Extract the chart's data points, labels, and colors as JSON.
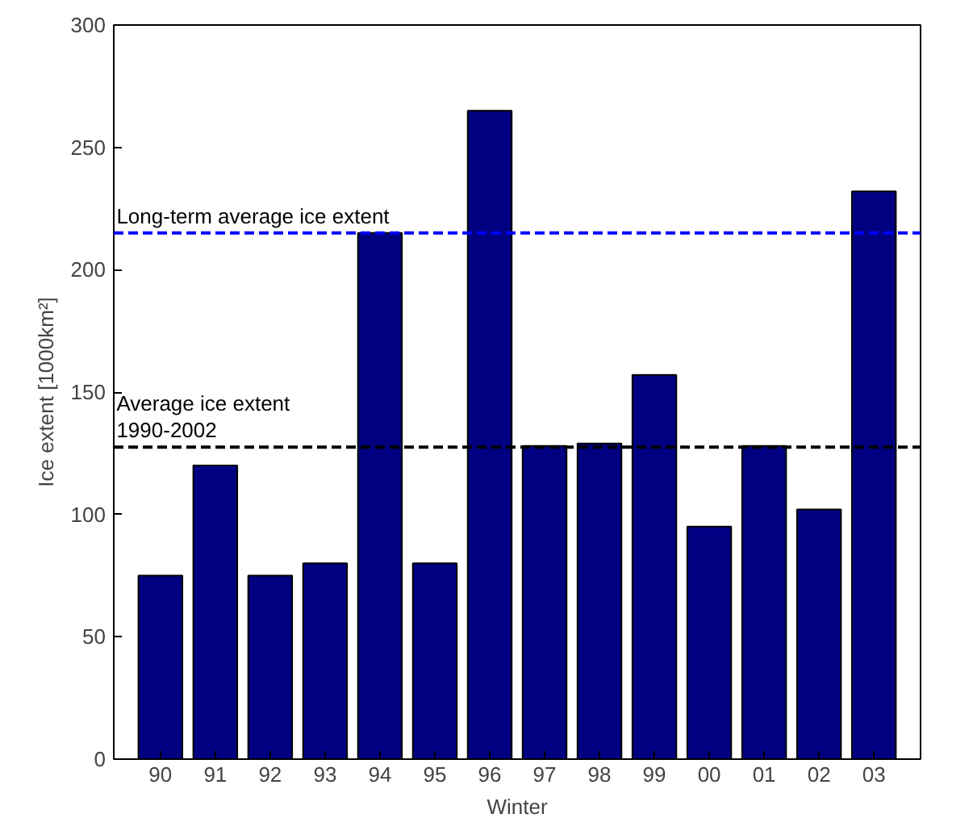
{
  "chart_data": {
    "type": "bar",
    "xlabel": "Winter",
    "ylabel": "Ice extent [1000km²]",
    "categories": [
      "90",
      "91",
      "92",
      "93",
      "94",
      "95",
      "96",
      "97",
      "98",
      "99",
      "00",
      "01",
      "02",
      "03"
    ],
    "values": [
      75,
      120,
      75,
      80,
      215,
      80,
      265,
      128,
      129,
      157,
      95,
      128,
      102,
      232
    ],
    "color": "#000080",
    "ylim": [
      0,
      300
    ],
    "yticks": [
      0,
      50,
      100,
      150,
      200,
      250,
      300
    ],
    "grid": false,
    "ref_lines": [
      {
        "axis": "y",
        "value": 215,
        "label": "Long-term average ice extent",
        "color": "#0000ff",
        "line_style": "dashed"
      },
      {
        "axis": "y",
        "value": 127.5,
        "label": "Average ice extent\n  1990-2002",
        "color": "#000000",
        "line_style": "dashed"
      }
    ]
  }
}
